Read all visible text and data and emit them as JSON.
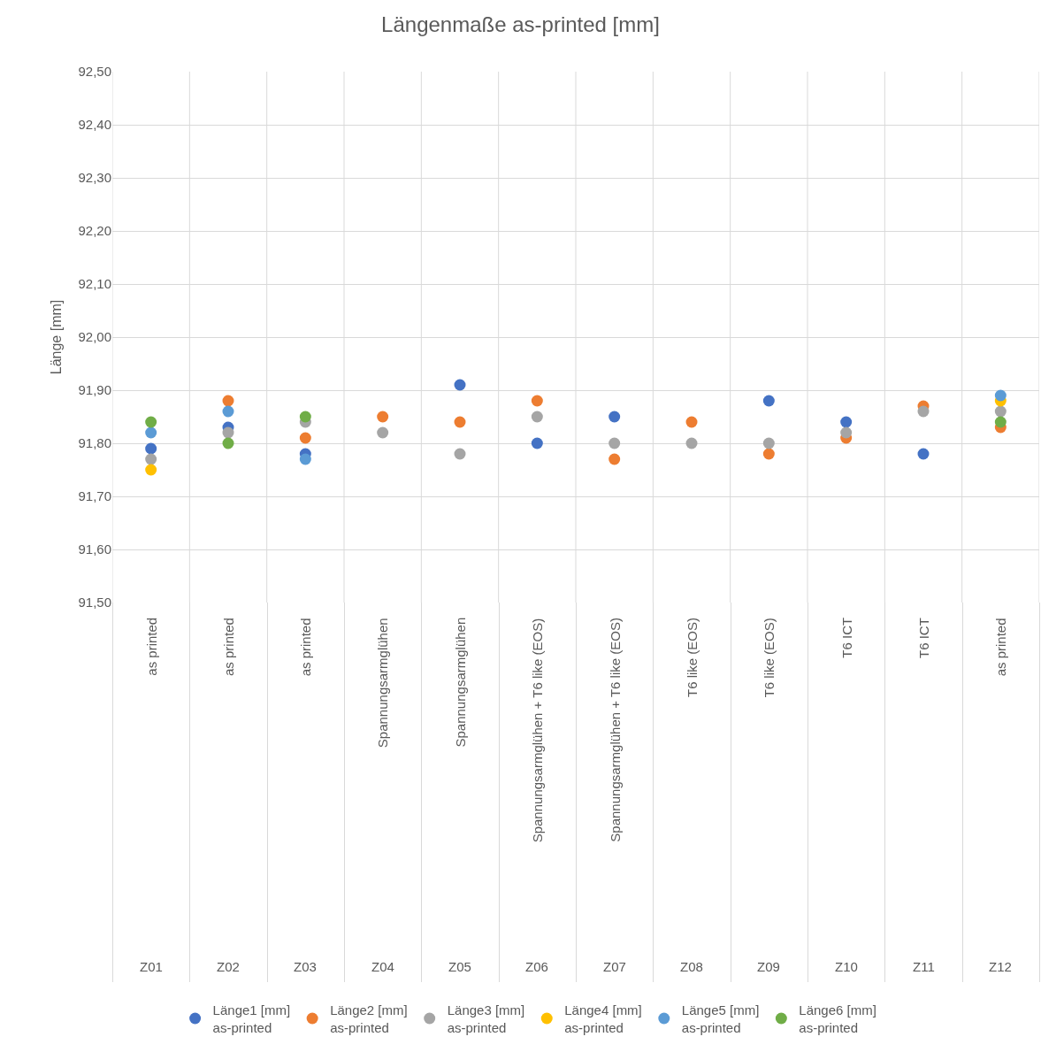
{
  "chart_data": {
    "type": "scatter",
    "title": "Längenmaße as-printed [mm]",
    "ylabel": "Länge [mm]",
    "categories": [
      "as printed\nZ01",
      "as printed\nZ02",
      "as printed\nZ03",
      "Spannungsarmglühen\nZ04",
      "Spannungsarmglühen\nZ05",
      "Spannungsarmglühen + T6 like (EOS)\nZ06",
      "Spannungsarmglühen + T6 like (EOS)\nZ07",
      "T6 like (EOS)\nZ08",
      "T6 like (EOS)\nZ09",
      "T6 ICT\nZ10",
      "T6 ICT\nZ11",
      "as printed\nZ12"
    ],
    "series": [
      {
        "name": "Länge1 [mm]\nas-printed",
        "color": "#4472c4",
        "values": [
          91.79,
          91.83,
          91.78,
          null,
          91.91,
          91.8,
          91.85,
          null,
          91.88,
          91.84,
          91.78,
          null
        ]
      },
      {
        "name": "Länge2 [mm]\nas-printed",
        "color": "#ed7d31",
        "values": [
          null,
          91.88,
          91.81,
          91.85,
          91.84,
          91.88,
          91.77,
          91.84,
          91.78,
          91.81,
          91.87,
          91.83
        ]
      },
      {
        "name": "Länge3 [mm]\nas-printed",
        "color": "#a5a5a5",
        "values": [
          91.77,
          91.82,
          91.84,
          91.82,
          91.78,
          91.85,
          91.8,
          91.8,
          91.8,
          91.82,
          91.86,
          91.86
        ]
      },
      {
        "name": "Länge4 [mm]\nas-printed",
        "color": "#ffc000",
        "values": [
          91.75,
          null,
          null,
          null,
          null,
          null,
          null,
          null,
          null,
          null,
          null,
          91.88
        ]
      },
      {
        "name": "Länge5 [mm]\nas-printed",
        "color": "#5b9bd5",
        "values": [
          91.82,
          91.86,
          91.77,
          null,
          null,
          null,
          null,
          null,
          null,
          null,
          null,
          91.89
        ]
      },
      {
        "name": "Länge6 [mm]\nas-printed",
        "color": "#70ad47",
        "values": [
          91.84,
          91.8,
          91.85,
          null,
          null,
          null,
          null,
          null,
          null,
          null,
          null,
          91.84
        ]
      }
    ],
    "ylim": [
      91.5,
      92.5
    ],
    "yticks": [
      {
        "value": 91.5,
        "label": "91,50"
      },
      {
        "value": 91.6,
        "label": "91,60"
      },
      {
        "value": 91.7,
        "label": "91,70"
      },
      {
        "value": 91.8,
        "label": "91,80"
      },
      {
        "value": 91.9,
        "label": "91,90"
      },
      {
        "value": 92.0,
        "label": "92,00"
      },
      {
        "value": 92.1,
        "label": "92,10"
      },
      {
        "value": 92.2,
        "label": "92,20"
      },
      {
        "value": 92.3,
        "label": "92,30"
      },
      {
        "value": 92.4,
        "label": "92,40"
      },
      {
        "value": 92.5,
        "label": "92,50"
      }
    ],
    "grid": true,
    "legend": "bottom",
    "marker": "circle"
  }
}
